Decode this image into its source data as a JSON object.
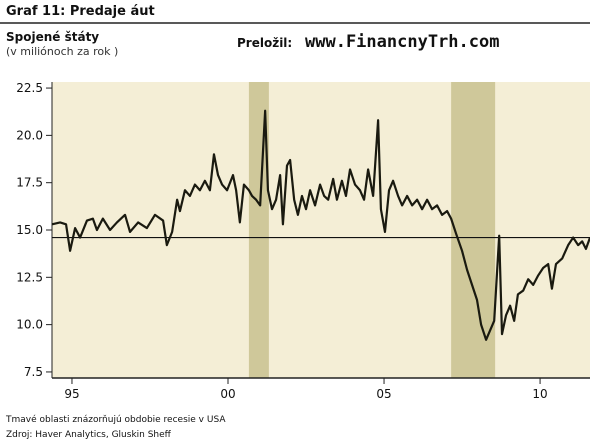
{
  "chart_data": {
    "type": "line",
    "title": "Graf 11: Predaje áut",
    "subtitle": "Spojené štáty",
    "unit_note": "(v miliónoch za rok )",
    "credit_label": "Preložil:",
    "credit_site": "www.FinancnyTrh.com",
    "footnote": "Tmavé oblasti znázorňujú obdobie recesie v USA",
    "source": "Zdroj: Haver Analytics, Gluskin Sheff",
    "xlim": [
      1994.36,
      2011.6
    ],
    "ylim": [
      7.18,
      22.82
    ],
    "xticks": [
      {
        "value": 1995,
        "label": "95"
      },
      {
        "value": 2000,
        "label": "00"
      },
      {
        "value": 2005,
        "label": "05"
      },
      {
        "value": 2010,
        "label": "10"
      }
    ],
    "yticks": [
      7.5,
      {
        "value": 10,
        "label": "10.0"
      },
      12.5,
      {
        "value": 15,
        "label": "15.0"
      },
      17.5,
      {
        "value": 20,
        "label": "20.0"
      },
      22.5
    ],
    "reference_line": 14.6,
    "recession_bands": [
      [
        2000.67,
        2001.31
      ],
      [
        2007.15,
        2008.56
      ]
    ],
    "band_color": "#cfc89a",
    "background": "#f4eed6",
    "x": [
      1994.36,
      1994.62,
      1994.81,
      1994.94,
      1995.1,
      1995.26,
      1995.48,
      1995.67,
      1995.8,
      1995.99,
      1996.22,
      1996.44,
      1996.7,
      1996.86,
      1997.12,
      1997.4,
      1997.66,
      1997.92,
      1998.04,
      1998.21,
      1998.37,
      1998.46,
      1998.62,
      1998.78,
      1998.94,
      1999.1,
      1999.26,
      1999.42,
      1999.55,
      1999.68,
      1999.81,
      1999.97,
      2000.16,
      2000.26,
      2000.38,
      2000.51,
      2000.67,
      2000.77,
      2000.9,
      2001.03,
      2001.19,
      2001.28,
      2001.41,
      2001.54,
      2001.67,
      2001.76,
      2001.89,
      2001.99,
      2002.12,
      2002.24,
      2002.37,
      2002.5,
      2002.63,
      2002.79,
      2002.95,
      2003.08,
      2003.21,
      2003.37,
      2003.49,
      2003.65,
      2003.78,
      2003.91,
      2004.07,
      2004.23,
      2004.36,
      2004.49,
      2004.65,
      2004.81,
      2004.9,
      2005.03,
      2005.16,
      2005.29,
      2005.45,
      2005.58,
      2005.74,
      2005.9,
      2006.06,
      2006.22,
      2006.38,
      2006.54,
      2006.7,
      2006.86,
      2007.02,
      2007.15,
      2007.31,
      2007.5,
      2007.66,
      2007.82,
      2007.98,
      2008.11,
      2008.27,
      2008.4,
      2008.53,
      2008.69,
      2008.78,
      2008.91,
      2009.04,
      2009.17,
      2009.29,
      2009.46,
      2009.62,
      2009.78,
      2009.94,
      2010.1,
      2010.26,
      2010.38,
      2010.51,
      2010.71,
      2010.9,
      2011.06,
      2011.22,
      2011.35,
      2011.47,
      2011.6
    ],
    "series": [
      {
        "color": "#1a1a10",
        "values": [
          15.3,
          15.4,
          15.3,
          13.9,
          15.1,
          14.6,
          15.5,
          15.6,
          15.0,
          15.6,
          15.0,
          15.4,
          15.8,
          14.9,
          15.4,
          15.1,
          15.8,
          15.5,
          14.2,
          14.9,
          16.6,
          16.0,
          17.1,
          16.8,
          17.4,
          17.1,
          17.6,
          17.1,
          19.0,
          17.9,
          17.4,
          17.1,
          17.9,
          17.1,
          15.4,
          17.4,
          17.1,
          16.8,
          16.6,
          16.3,
          21.3,
          17.1,
          16.1,
          16.6,
          17.9,
          15.3,
          18.4,
          18.7,
          16.6,
          15.8,
          16.8,
          16.1,
          17.1,
          16.3,
          17.4,
          16.8,
          16.6,
          17.7,
          16.6,
          17.6,
          16.8,
          18.2,
          17.4,
          17.1,
          16.6,
          18.2,
          16.8,
          20.8,
          16.1,
          14.9,
          17.1,
          17.6,
          16.8,
          16.3,
          16.8,
          16.3,
          16.6,
          16.1,
          16.6,
          16.1,
          16.3,
          15.8,
          16.0,
          15.6,
          14.8,
          13.9,
          12.9,
          12.1,
          11.3,
          10.0,
          9.2,
          9.7,
          10.2,
          14.7,
          9.5,
          10.5,
          11.0,
          10.2,
          11.6,
          11.8,
          12.4,
          12.1,
          12.6,
          13.0,
          13.2,
          11.9,
          13.2,
          13.5,
          14.2,
          14.6,
          14.2,
          14.4,
          14.0,
          14.6
        ]
      }
    ]
  }
}
